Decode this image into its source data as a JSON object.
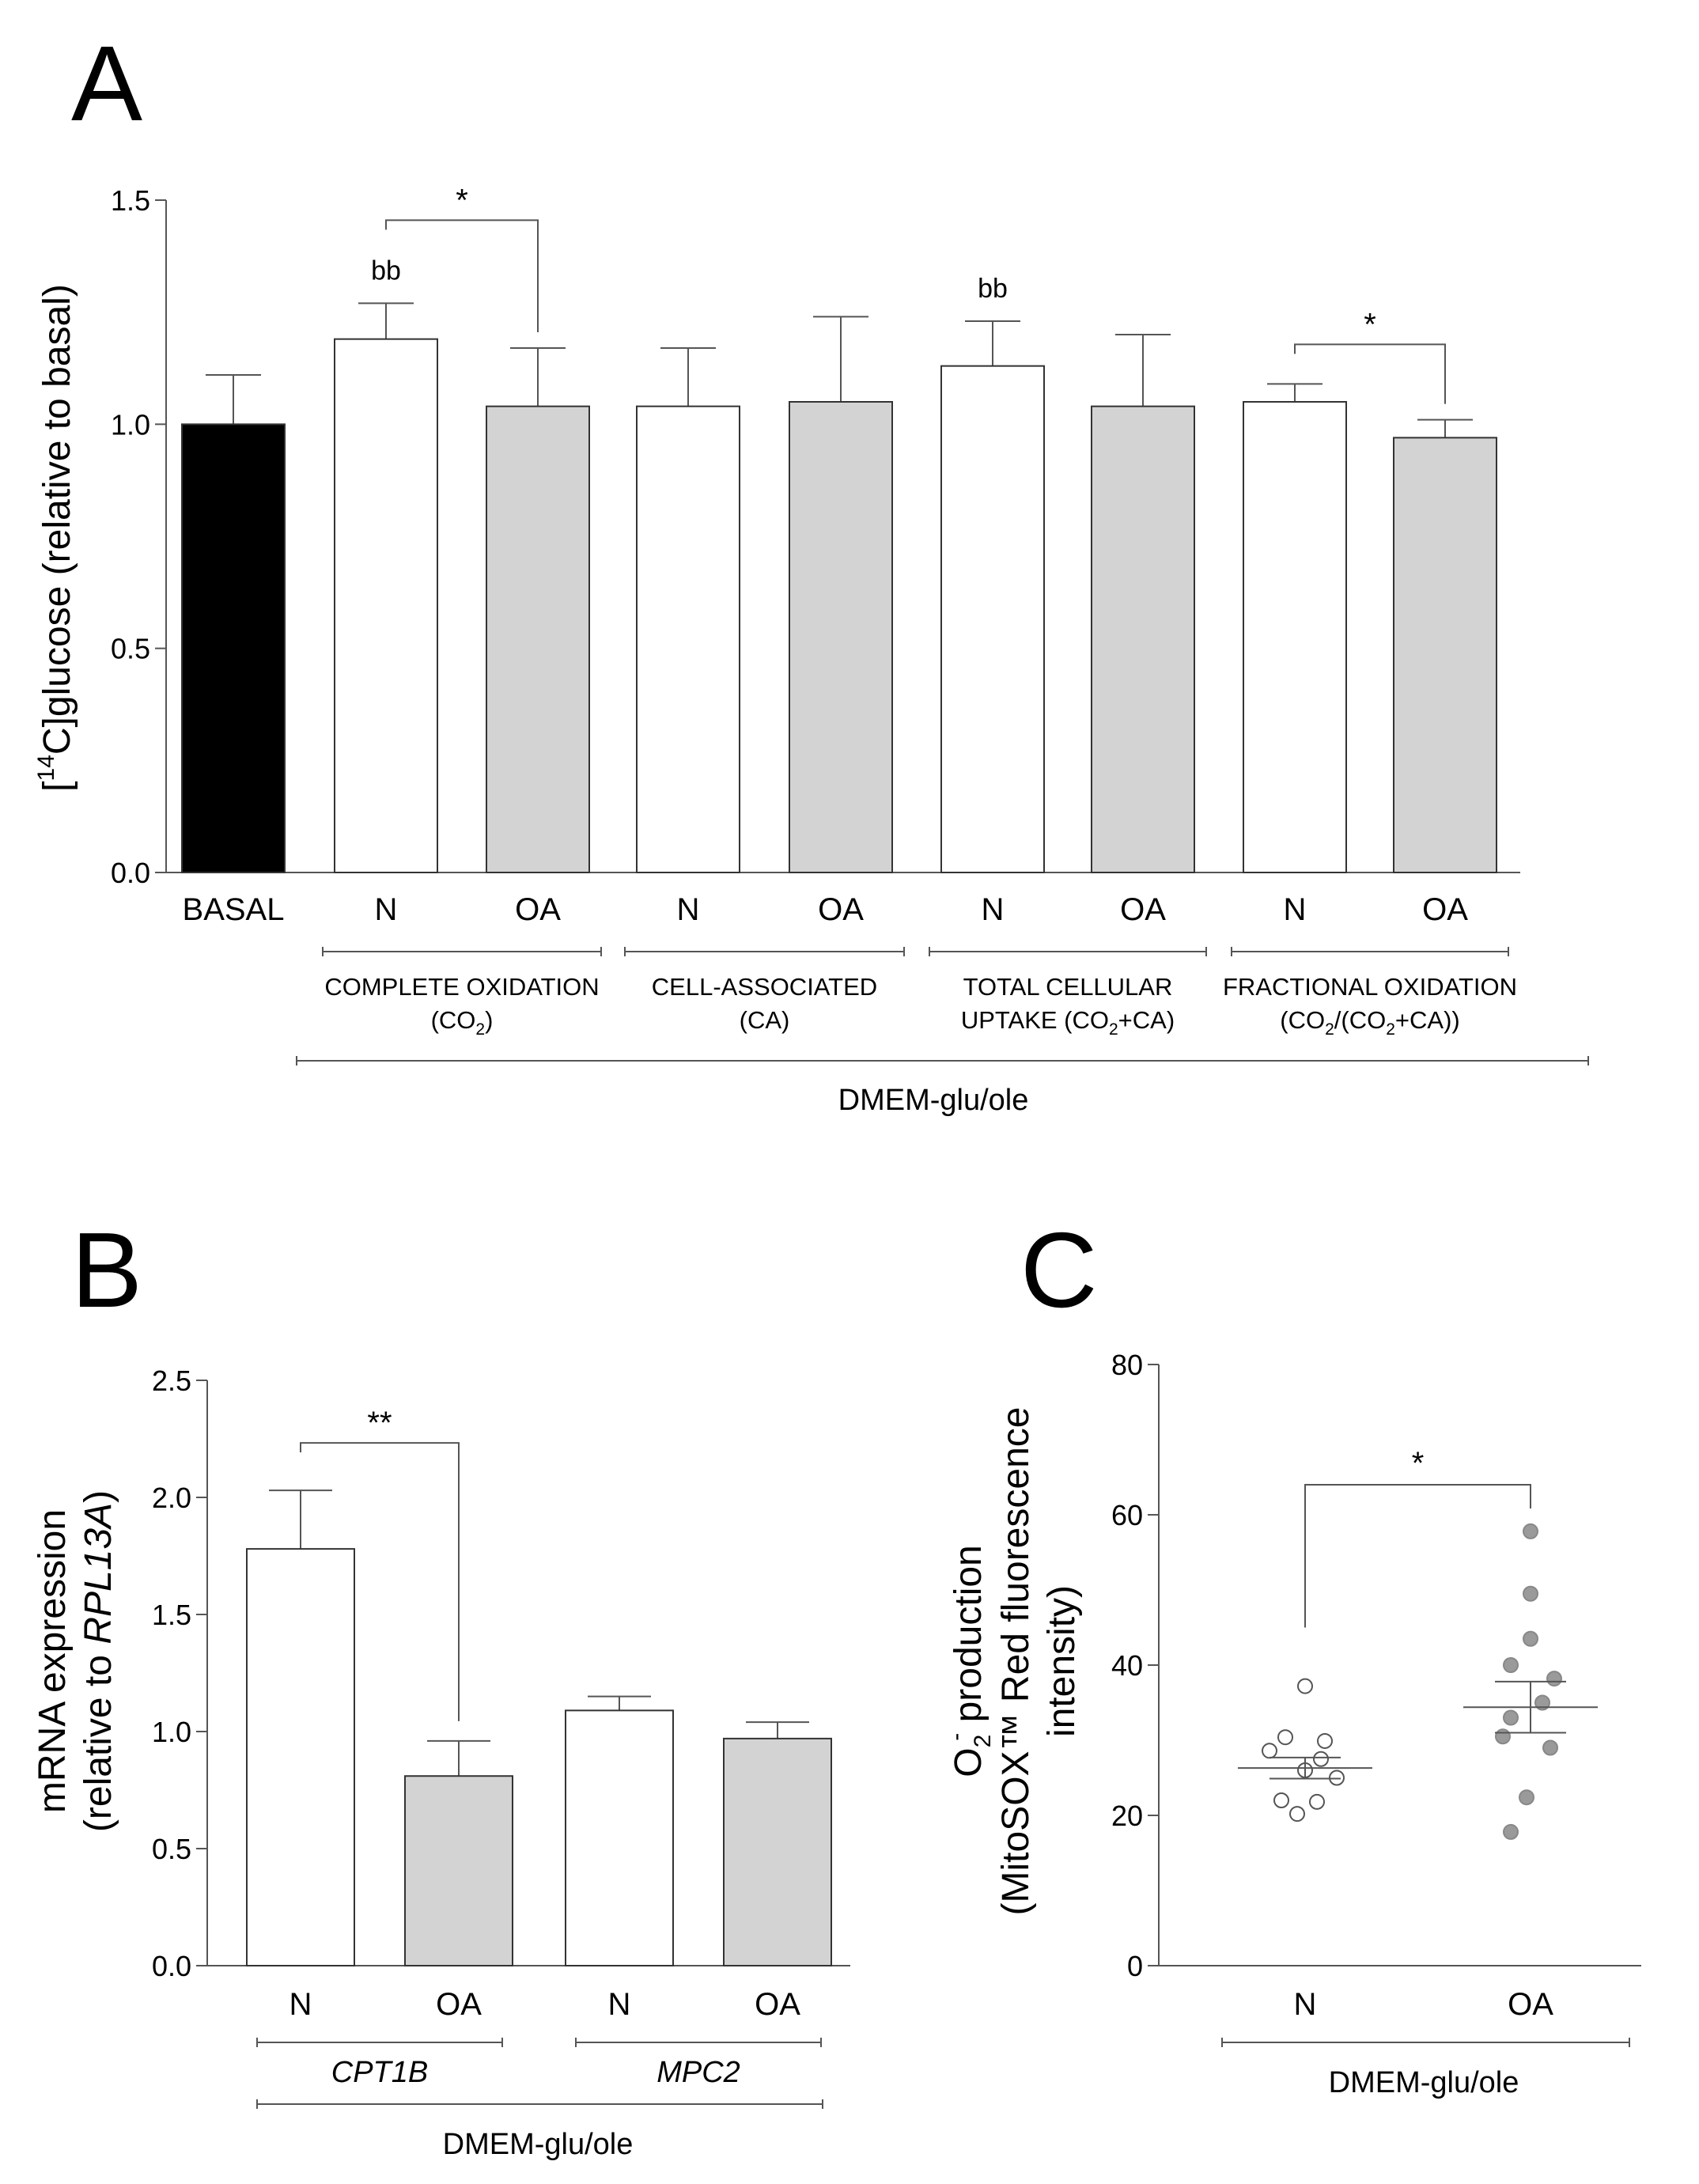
{
  "colors": {
    "black": "#000000",
    "white": "#ffffff",
    "gray": "#d3d3d3",
    "dot_gray": "#9a9a9a",
    "axis": "#555555"
  },
  "panels": {
    "A": {
      "letter": "A"
    },
    "B": {
      "letter": "B"
    },
    "C": {
      "letter": "C"
    }
  },
  "chart_data": [
    {
      "panel": "A",
      "type": "bar",
      "ylabel": "[14C]glucose (relative to basal)",
      "ylabel_parts": {
        "pre": "[",
        "sup": "14",
        "post": "C]glucose (relative to basal)"
      },
      "ylim": [
        0,
        1.5
      ],
      "yticks": [
        "0.0",
        "0.5",
        "1.0",
        "1.5"
      ],
      "bars": [
        {
          "label": "BASAL",
          "value": 1.0,
          "error": 0.11,
          "fill": "black",
          "annotation": ""
        },
        {
          "label": "N",
          "value": 1.19,
          "error": 0.08,
          "fill": "white",
          "annotation": "bb"
        },
        {
          "label": "OA",
          "value": 1.04,
          "error": 0.13,
          "fill": "gray",
          "annotation": ""
        },
        {
          "label": "N",
          "value": 1.04,
          "error": 0.13,
          "fill": "white",
          "annotation": ""
        },
        {
          "label": "OA",
          "value": 1.05,
          "error": 0.19,
          "fill": "gray",
          "annotation": ""
        },
        {
          "label": "N",
          "value": 1.13,
          "error": 0.1,
          "fill": "white",
          "annotation": "bb"
        },
        {
          "label": "OA",
          "value": 1.04,
          "error": 0.16,
          "fill": "gray",
          "annotation": ""
        },
        {
          "label": "N",
          "value": 1.05,
          "error": 0.04,
          "fill": "white",
          "annotation": ""
        },
        {
          "label": "OA",
          "value": 0.97,
          "error": 0.04,
          "fill": "gray",
          "annotation": ""
        }
      ],
      "significance": [
        {
          "from": 1,
          "to": 2,
          "label": "*"
        },
        {
          "from": 7,
          "to": 8,
          "label": "*"
        }
      ],
      "groups": [
        {
          "from": 1,
          "to": 2,
          "line1": "COMPLETE OXIDATION",
          "line2_parts": [
            "(CO",
            "2",
            ")"
          ]
        },
        {
          "from": 3,
          "to": 4,
          "line1": "CELL-ASSOCIATED",
          "line2_parts": [
            "(CA)"
          ]
        },
        {
          "from": 5,
          "to": 6,
          "line1": "TOTAL CELLULAR",
          "line2_parts": [
            "UPTAKE (CO",
            "2",
            "+CA)"
          ]
        },
        {
          "from": 7,
          "to": 8,
          "line1": "FRACTIONAL OXIDATION",
          "line2_parts": [
            "(CO",
            "2",
            "/(CO",
            "2",
            "+CA))"
          ]
        }
      ],
      "bottom_label": "DMEM-glu/ole"
    },
    {
      "panel": "B",
      "type": "bar",
      "ylabel_line1": "mRNA expression",
      "ylabel_line2_pre": "(relative to ",
      "ylabel_line2_italic": "RPL13A",
      "ylabel_line2_post": ")",
      "ylim": [
        0,
        2.5
      ],
      "yticks": [
        "0.0",
        "0.5",
        "1.0",
        "1.5",
        "2.0",
        "2.5"
      ],
      "bars": [
        {
          "label": "N",
          "value": 1.78,
          "error": 0.25,
          "fill": "white"
        },
        {
          "label": "OA",
          "value": 0.81,
          "error": 0.15,
          "fill": "gray"
        },
        {
          "label": "N",
          "value": 1.09,
          "error": 0.06,
          "fill": "white"
        },
        {
          "label": "OA",
          "value": 0.97,
          "error": 0.07,
          "fill": "gray"
        }
      ],
      "significance": [
        {
          "from": 0,
          "to": 1,
          "label": "**"
        }
      ],
      "groups": [
        {
          "from": 0,
          "to": 1,
          "label": "CPT1B"
        },
        {
          "from": 2,
          "to": 3,
          "label": "MPC2"
        }
      ],
      "bottom_label": "DMEM-glu/ole"
    },
    {
      "panel": "C",
      "type": "scatter",
      "ylabel_line1_parts": {
        "base": "O",
        "sub": "2",
        "sup": "-",
        "post": " production"
      },
      "ylabel_line2": "(MitoSOX™ Red fluorescence",
      "ylabel_line3": "intensity)",
      "ylim": [
        0,
        80
      ],
      "yticks": [
        "0",
        "20",
        "40",
        "60",
        "80"
      ],
      "categories": [
        "N",
        "OA"
      ],
      "series": [
        {
          "category": "N",
          "fill": "white",
          "mean": 26.3,
          "sem_low": 24.9,
          "sem_high": 27.7,
          "values": [
            37.2,
            30.4,
            29.9,
            28.6,
            27.5,
            26.0,
            25.0,
            22.0,
            21.8,
            20.2
          ]
        },
        {
          "category": "OA",
          "fill": "gray",
          "mean": 34.4,
          "sem_low": 31.0,
          "sem_high": 37.8,
          "values": [
            57.8,
            49.5,
            43.5,
            40.0,
            38.2,
            35.0,
            33.0,
            30.5,
            29.0,
            22.4,
            17.8
          ]
        }
      ],
      "significance": [
        {
          "from": 0,
          "to": 1,
          "label": "*"
        }
      ],
      "bottom_label": "DMEM-glu/ole"
    }
  ]
}
